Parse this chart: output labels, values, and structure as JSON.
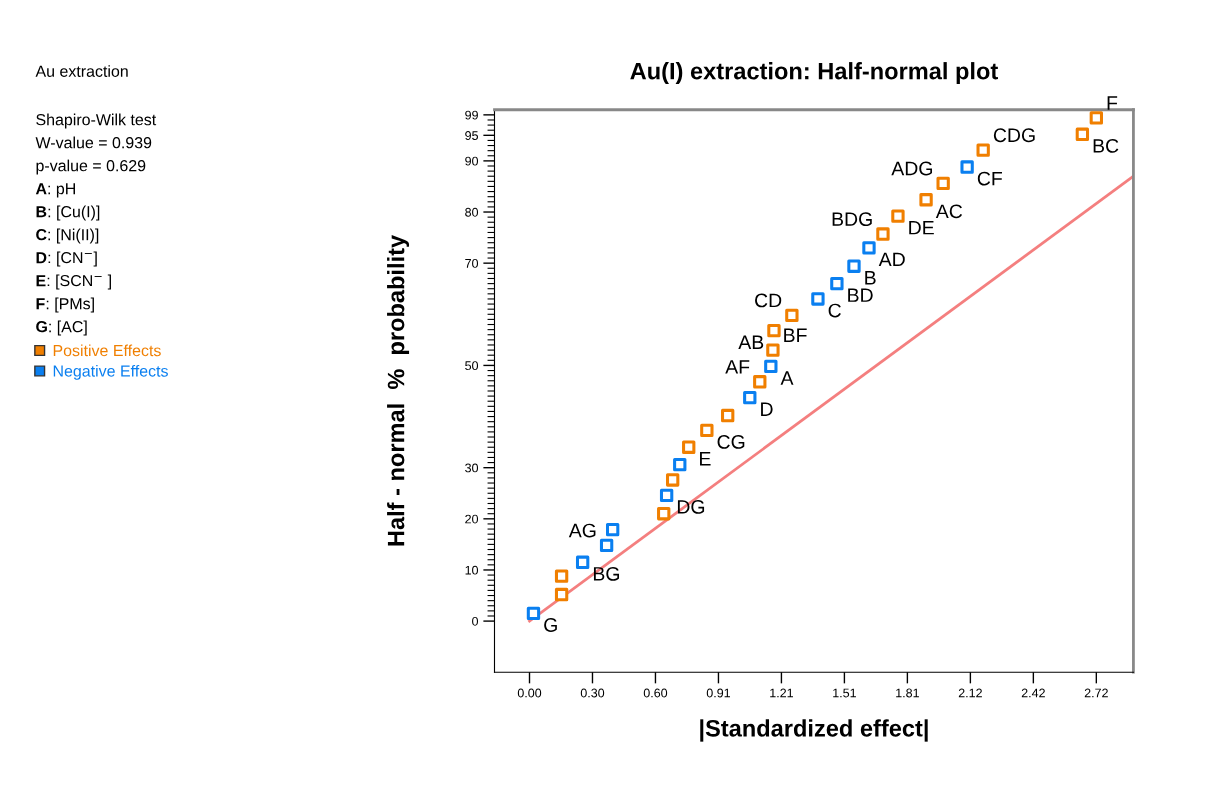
{
  "chart_data": {
    "type": "scatter",
    "title": "Au(I) extraction: Half-normal plot",
    "xlabel": "|Standardized effect|",
    "ylabel": "Half - normal  %  probability",
    "xlim": [
      -0.168,
      2.898
    ],
    "ylim": [
      -10,
      100
    ],
    "xticks": [
      {
        "value": 0,
        "label": "0.00"
      },
      {
        "value": 0.3022,
        "label": "0.30"
      },
      {
        "value": 0.6044,
        "label": "0.60"
      },
      {
        "value": 0.9067,
        "label": "0.91"
      },
      {
        "value": 1.2089,
        "label": "1.21"
      },
      {
        "value": 1.5111,
        "label": "1.51"
      },
      {
        "value": 1.8133,
        "label": "1.81"
      },
      {
        "value": 2.1156,
        "label": "2.12"
      },
      {
        "value": 2.4178,
        "label": "2.42"
      },
      {
        "value": 2.72,
        "label": "2.72"
      }
    ],
    "yticks": [
      0,
      10,
      20,
      30,
      50,
      70,
      80,
      90,
      95,
      99,
      {
        "value": 1,
        "label": null
      },
      {
        "value": 2,
        "label": null
      },
      {
        "value": 3,
        "label": null
      },
      {
        "value": 4,
        "label": null
      },
      {
        "value": 5,
        "label": null
      },
      {
        "value": 6,
        "label": null
      },
      {
        "value": 7,
        "label": null
      },
      {
        "value": 8,
        "label": null
      },
      {
        "value": 9,
        "label": null
      },
      {
        "value": 11,
        "label": null
      },
      {
        "value": 12,
        "label": null
      },
      {
        "value": 13,
        "label": null
      },
      {
        "value": 14,
        "label": null
      },
      {
        "value": 15,
        "label": null
      },
      {
        "value": 16,
        "label": null
      },
      {
        "value": 17,
        "label": null
      },
      {
        "value": 18,
        "label": null
      },
      {
        "value": 19,
        "label": null
      },
      {
        "value": 21,
        "label": null
      },
      {
        "value": 22,
        "label": null
      },
      {
        "value": 23,
        "label": null
      },
      {
        "value": 24,
        "label": null
      },
      {
        "value": 25,
        "label": null
      },
      {
        "value": 26,
        "label": null
      },
      {
        "value": 27,
        "label": null
      },
      {
        "value": 28,
        "label": null
      },
      {
        "value": 29,
        "label": null
      },
      {
        "value": 31,
        "label": null
      },
      {
        "value": 32,
        "label": null
      },
      {
        "value": 33,
        "label": null
      },
      {
        "value": 34,
        "label": null
      },
      {
        "value": 35,
        "label": null
      },
      {
        "value": 36,
        "label": null
      },
      {
        "value": 37,
        "label": null
      },
      {
        "value": 38,
        "label": null
      },
      {
        "value": 39,
        "label": null
      },
      {
        "value": 40,
        "label": null
      },
      {
        "value": 41,
        "label": null
      },
      {
        "value": 42,
        "label": null
      },
      {
        "value": 43,
        "label": null
      },
      {
        "value": 44,
        "label": null
      },
      {
        "value": 45,
        "label": null
      },
      {
        "value": 46,
        "label": null
      },
      {
        "value": 47,
        "label": null
      },
      {
        "value": 48,
        "label": null
      },
      {
        "value": 49,
        "label": null
      },
      {
        "value": 51,
        "label": null
      },
      {
        "value": 52,
        "label": null
      },
      {
        "value": 53,
        "label": null
      },
      {
        "value": 54,
        "label": null
      },
      {
        "value": 55,
        "label": null
      },
      {
        "value": 56,
        "label": null
      },
      {
        "value": 57,
        "label": null
      },
      {
        "value": 58,
        "label": null
      },
      {
        "value": 59,
        "label": null
      },
      {
        "value": 60,
        "label": null
      },
      {
        "value": 61,
        "label": null
      },
      {
        "value": 62,
        "label": null
      },
      {
        "value": 63,
        "label": null
      },
      {
        "value": 64,
        "label": null
      },
      {
        "value": 65,
        "label": null
      },
      {
        "value": 66,
        "label": null
      },
      {
        "value": 67,
        "label": null
      },
      {
        "value": 68,
        "label": null
      },
      {
        "value": 69,
        "label": null
      },
      {
        "value": 71,
        "label": null
      },
      {
        "value": 72,
        "label": null
      },
      {
        "value": 73,
        "label": null
      },
      {
        "value": 74,
        "label": null
      },
      {
        "value": 75,
        "label": null
      },
      {
        "value": 76,
        "label": null
      },
      {
        "value": 77,
        "label": null
      },
      {
        "value": 78,
        "label": null
      },
      {
        "value": 79,
        "label": null
      },
      {
        "value": 81,
        "label": null
      },
      {
        "value": 82,
        "label": null
      },
      {
        "value": 83,
        "label": null
      },
      {
        "value": 84,
        "label": null
      },
      {
        "value": 85,
        "label": null
      },
      {
        "value": 86,
        "label": null
      },
      {
        "value": 87,
        "label": null
      },
      {
        "value": 88,
        "label": null
      },
      {
        "value": 89,
        "label": null
      },
      {
        "value": 91,
        "label": null
      },
      {
        "value": 92,
        "label": null
      },
      {
        "value": 93,
        "label": null
      },
      {
        "value": 94,
        "label": null
      },
      {
        "value": 96,
        "label": null
      },
      {
        "value": 97,
        "label": null
      },
      {
        "value": 98,
        "label": null
      }
    ],
    "grid": false,
    "legend": "left",
    "series": [
      {
        "type": "line",
        "color": "#f47f7f",
        "x": [
          0,
          2.898
        ],
        "values": [
          0,
          87.0
        ]
      },
      {
        "name": "Positive Effects",
        "color": "#f07f00",
        "marker": "square",
        "x": [
          0.154,
          0.154,
          0.644,
          0.687,
          0.951,
          0.764,
          0.851,
          1.105,
          1.168,
          1.173,
          1.259,
          1.696,
          1.768,
          1.903,
          1.985,
          2.177,
          2.653,
          2.72
        ],
        "values": [
          8.8,
          5.2,
          21.0,
          27.6,
          40.2,
          34.0,
          37.3,
          46.8,
          53.0,
          56.8,
          59.8,
          75.7,
          79.2,
          82.4,
          85.6,
          92.1,
          95.2,
          98.4
        ]
      },
      {
        "name": "Negative Effects",
        "color": "#0a7ff0",
        "marker": "square",
        "x": [
          0.399,
          0.721,
          0.019,
          0.255,
          0.37,
          0.658,
          1.057,
          1.158,
          1.384,
          1.475,
          1.557,
          1.629,
          2.1
        ],
        "values": [
          17.9,
          30.6,
          1.5,
          11.5,
          14.8,
          24.6,
          43.7,
          49.8,
          63.0,
          66.0,
          69.4,
          73.0,
          88.8
        ]
      }
    ],
    "annotations": [
      "Au extraction",
      "Shapiro-Wilk test",
      "W-value = 0.939",
      "p-value = 0.629",
      "A: pH",
      "B: [Cu(I)]",
      "C: [Ni(II)]",
      "D: [CN$^{−}$]",
      "E: [SCN$^{−}$ ]",
      "F: [PMs]",
      "G: [AC]",
      {
        "text": "G",
        "x": 0.019,
        "y": 1.5
      },
      {
        "text": "BG",
        "x": 0.255,
        "y": 11.5
      },
      {
        "text": "AG",
        "x": 0.37,
        "y": 14.8
      },
      {
        "text": "DG",
        "x": 0.658,
        "y": 24.6
      },
      {
        "text": "E",
        "x": 0.764,
        "y": 34.0
      },
      {
        "text": "CG",
        "x": 0.851,
        "y": 37.3
      },
      {
        "text": "D",
        "x": 1.057,
        "y": 43.7
      },
      {
        "text": "AF",
        "x": 1.105,
        "y": 46.8
      },
      {
        "text": "A",
        "x": 1.158,
        "y": 49.8
      },
      {
        "text": "BF",
        "x": 1.168,
        "y": 53.0
      },
      {
        "text": "AB",
        "x": 1.173,
        "y": 56.8
      },
      {
        "text": "CD",
        "x": 1.259,
        "y": 59.8
      },
      {
        "text": "C",
        "x": 1.384,
        "y": 63.0
      },
      {
        "text": "BD",
        "x": 1.475,
        "y": 66.0
      },
      {
        "text": "B",
        "x": 1.557,
        "y": 69.4
      },
      {
        "text": "AD",
        "x": 1.629,
        "y": 73.0
      },
      {
        "text": "BDG",
        "x": 1.696,
        "y": 75.7
      },
      {
        "text": "DE",
        "x": 1.768,
        "y": 79.2
      },
      {
        "text": "AC",
        "x": 1.903,
        "y": 82.4
      },
      {
        "text": "ADG",
        "x": 1.985,
        "y": 85.6
      },
      {
        "text": "CF",
        "x": 2.1,
        "y": 88.8
      },
      {
        "text": "CDG",
        "x": 2.177,
        "y": 92.1
      },
      {
        "text": "BC",
        "x": 2.653,
        "y": 95.2
      },
      {
        "text": "F",
        "x": 2.72,
        "y": 98.4
      }
    ]
  }
}
